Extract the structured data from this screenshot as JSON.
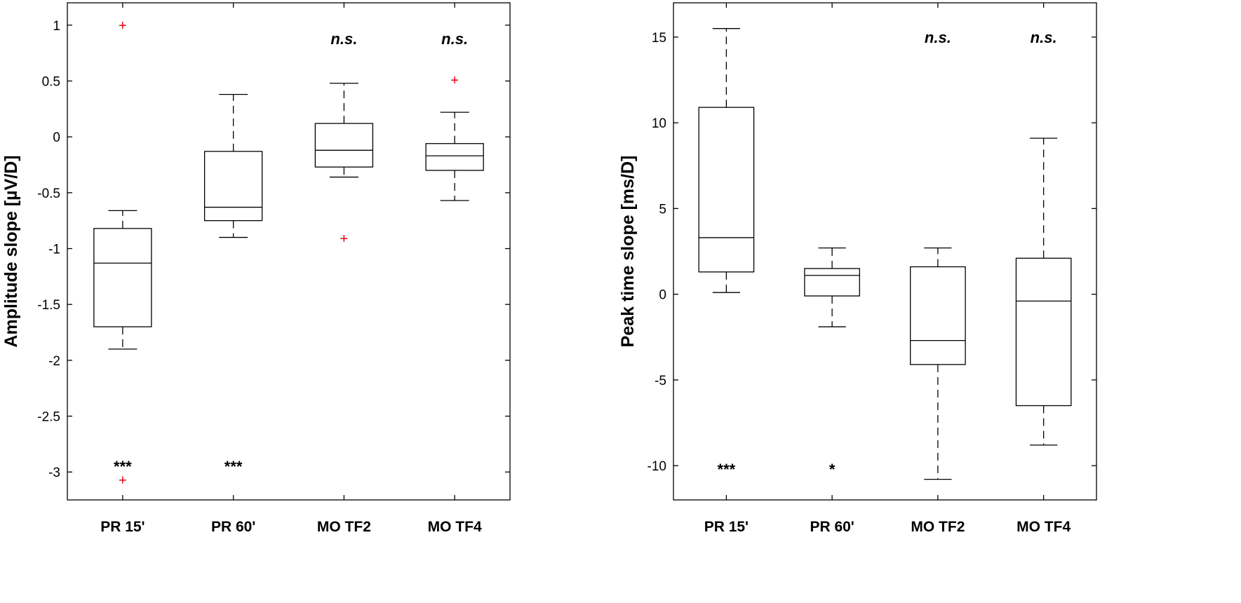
{
  "chart_data": [
    {
      "type": "box",
      "ylabel": "Amplitude slope [µV/D]",
      "ylim": [
        -3.25,
        1.2
      ],
      "yticks": [
        1,
        0.5,
        0,
        -0.5,
        -1,
        -1.5,
        -2,
        -2.5,
        -3
      ],
      "ytick_labels": [
        "1",
        "0.5",
        "0",
        "-0.5",
        "-1",
        "-1.5",
        "-2",
        "-2.5",
        "-3"
      ],
      "categories": [
        "PR 15'",
        "PR 60'",
        "MO TF2",
        "MO TF4"
      ],
      "boxes": [
        {
          "whisker_low": -1.9,
          "q1": -1.7,
          "median": -1.13,
          "q3": -0.82,
          "whisker_high": -0.66,
          "outliers": [
            1.0,
            -3.07
          ]
        },
        {
          "whisker_low": -0.9,
          "q1": -0.75,
          "median": -0.63,
          "q3": -0.13,
          "whisker_high": 0.38,
          "outliers": []
        },
        {
          "whisker_low": -0.36,
          "q1": -0.27,
          "median": -0.12,
          "q3": 0.12,
          "whisker_high": 0.48,
          "outliers": [
            -0.91
          ]
        },
        {
          "whisker_low": -0.57,
          "q1": -0.3,
          "median": -0.17,
          "q3": -0.06,
          "whisker_high": 0.22,
          "outliers": [
            0.51
          ]
        }
      ],
      "annotations": [
        {
          "category": 0,
          "text": "***",
          "y": -2.95
        },
        {
          "category": 1,
          "text": "***",
          "y": -2.95
        },
        {
          "category": 2,
          "text": "n.s.",
          "y": 0.88
        },
        {
          "category": 3,
          "text": "n.s.",
          "y": 0.88
        }
      ]
    },
    {
      "type": "box",
      "ylabel": "Peak time slope [ms/D]",
      "ylim": [
        -12,
        17
      ],
      "yticks": [
        15,
        10,
        5,
        0,
        -5,
        -10
      ],
      "ytick_labels": [
        "15",
        "10",
        "5",
        "0",
        "-5",
        "-10"
      ],
      "categories": [
        "PR 15'",
        "PR 60'",
        "MO TF2",
        "MO TF4"
      ],
      "boxes": [
        {
          "whisker_low": 0.1,
          "q1": 1.3,
          "median": 3.3,
          "q3": 10.9,
          "whisker_high": 15.5,
          "outliers": []
        },
        {
          "whisker_low": -1.9,
          "q1": -0.1,
          "median": 1.1,
          "q3": 1.5,
          "whisker_high": 2.7,
          "outliers": []
        },
        {
          "whisker_low": -10.8,
          "q1": -4.1,
          "median": -2.7,
          "q3": 1.6,
          "whisker_high": 2.7,
          "outliers": []
        },
        {
          "whisker_low": -8.8,
          "q1": -6.5,
          "median": -0.4,
          "q3": 2.1,
          "whisker_high": 9.1,
          "outliers": []
        }
      ],
      "annotations": [
        {
          "category": 0,
          "text": "***",
          "y": -10.2
        },
        {
          "category": 1,
          "text": "*",
          "y": -10.2
        },
        {
          "category": 2,
          "text": "n.s.",
          "y": 15.0
        },
        {
          "category": 3,
          "text": "n.s.",
          "y": 15.0
        }
      ]
    }
  ]
}
